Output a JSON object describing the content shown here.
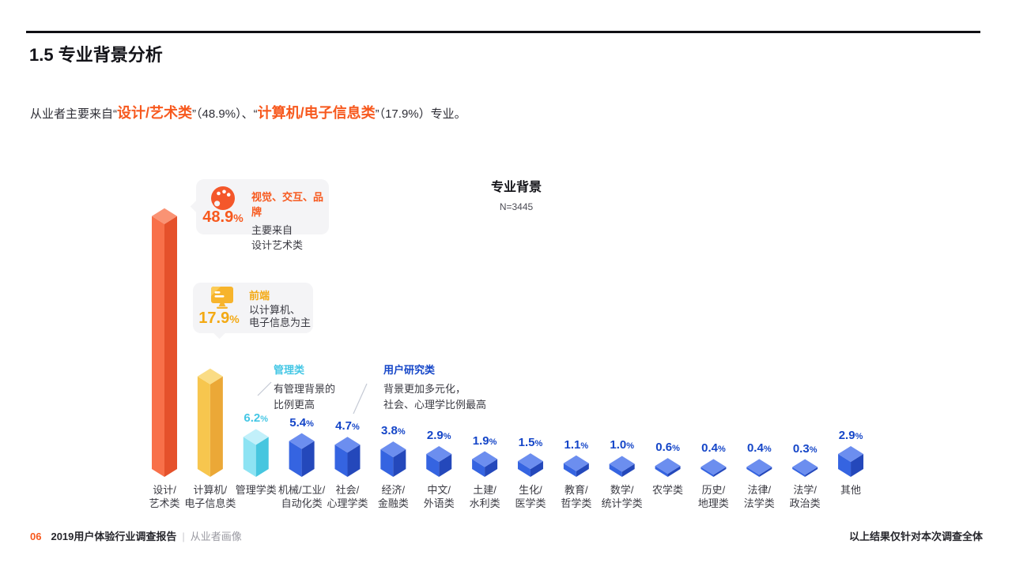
{
  "page": {
    "title": "1.5 专业背景分析",
    "footer": {
      "page_number": "06",
      "report_title": "2019用户体验行业调查报告",
      "separator": "|",
      "section": "从业者画像",
      "note": "以上结果仅针对本次调查全体"
    }
  },
  "intro": {
    "segments": [
      {
        "text": "从业者主要来自",
        "style": "normal"
      },
      {
        "text": "“",
        "style": "normal"
      },
      {
        "text": "设计/艺术类",
        "style": "highlight"
      },
      {
        "text": "”",
        "style": "normal"
      },
      {
        "text": "（48.9%）、",
        "style": "normal"
      },
      {
        "text": "“",
        "style": "normal"
      },
      {
        "text": "计算机/电子信息类",
        "style": "highlight"
      },
      {
        "text": "”",
        "style": "normal"
      },
      {
        "text": "（17.9%）专业。",
        "style": "normal"
      }
    ]
  },
  "callouts": [
    {
      "pct": "48.9%",
      "title": "视觉、交互、品牌",
      "lines": [
        "主要来自",
        "设计艺术类"
      ],
      "icon": "palette-icon"
    },
    {
      "pct": "17.9%",
      "title": "前端",
      "lines": [
        "以计算机、",
        "电子信息为主"
      ],
      "icon": "monitor-icon"
    }
  ],
  "annotations": [
    {
      "title": "管理类",
      "lines": [
        "有管理背景的",
        "比例更高"
      ]
    },
    {
      "title": "用户研究类",
      "lines": [
        "背景更加多元化，",
        "社会、心理学比例最高"
      ]
    }
  ],
  "chart_data": {
    "type": "bar",
    "title": "专业背景",
    "sample_label": "N=3445",
    "unit": "%",
    "legend": "none",
    "grid": false,
    "categories": [
      "设计/艺术类",
      "计算机/电子信息类",
      "管理学类",
      "机械/工业/自动化类",
      "社会/心理学类",
      "经济/金融类",
      "中文/外语类",
      "土建/水利类",
      "生化/医学类",
      "教育/哲学类",
      "数学/统计学类",
      "农学类",
      "历史/地理类",
      "法律/法学类",
      "法学/政治类",
      "其他"
    ],
    "values": [
      48.9,
      17.9,
      6.2,
      5.4,
      4.7,
      3.8,
      2.9,
      1.9,
      1.5,
      1.1,
      1.0,
      0.6,
      0.4,
      0.4,
      0.3,
      2.9
    ],
    "value_labels": [
      "",
      "",
      "6.2%",
      "5.4%",
      "4.7%",
      "3.8%",
      "2.9%",
      "1.9%",
      "1.5%",
      "1.1%",
      "1.0%",
      "0.6%",
      "0.4%",
      "0.4%",
      "0.3%",
      "2.9%"
    ],
    "category_lines": [
      [
        "设计/",
        "艺术类"
      ],
      [
        "计算机/",
        "电子信息类"
      ],
      [
        "管理学类"
      ],
      [
        "机械/工业/",
        "自动化类"
      ],
      [
        "社会/",
        "心理学类"
      ],
      [
        "经济/",
        "金融类"
      ],
      [
        "中文/",
        "外语类"
      ],
      [
        "土建/",
        "水利类"
      ],
      [
        "生化/",
        "医学类"
      ],
      [
        "教育/",
        "哲学类"
      ],
      [
        "数学/",
        "统计学类"
      ],
      [
        "农学类"
      ],
      [
        "历史/",
        "地理类"
      ],
      [
        "法律/",
        "法学类"
      ],
      [
        "法学/",
        "政治类"
      ],
      [
        "其他"
      ]
    ],
    "bar_colors": [
      "orange",
      "yellow",
      "cyan",
      "blue",
      "blue",
      "blue",
      "blue",
      "blue",
      "blue",
      "blue",
      "blue",
      "blue",
      "blue",
      "blue",
      "blue",
      "blue"
    ]
  },
  "colors": {
    "accent_orange": "#F7591E",
    "accent_amber": "#F3A913",
    "accent_cyan": "#45C7E5",
    "accent_blue": "#1546C8",
    "bar_orange": {
      "front": "#F87049",
      "side": "#E5512B",
      "top": "#FA9374"
    },
    "bar_yellow": {
      "front": "#F7C64E",
      "side": "#EBA837",
      "top": "#FADC85"
    },
    "bar_cyan": {
      "front": "#8DE3F3",
      "side": "#46C6DF",
      "top": "#C2F0FA"
    },
    "bar_blue": {
      "front": "#3564E1",
      "side": "#2448BB",
      "top": "#6C8EEF"
    }
  }
}
